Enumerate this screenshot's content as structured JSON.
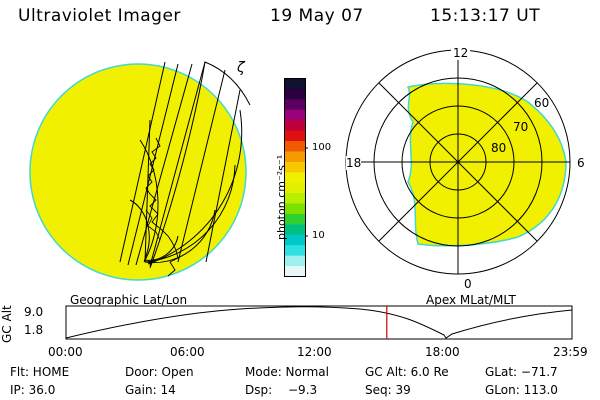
{
  "header": {
    "instrument": "Ultraviolet Imager",
    "date": "19 May 07",
    "time": "15:13:17 UT"
  },
  "left_panel": {
    "label": "Geographic Lat/Lon",
    "marker_glyph": "ζ"
  },
  "colorbar": {
    "label": "photon cm⁻²s⁻¹",
    "ticks": [
      "100",
      "10"
    ],
    "colors": [
      "#101030",
      "#2a0040",
      "#5a0060",
      "#9b007b",
      "#c0003a",
      "#e01010",
      "#f05a00",
      "#f59a00",
      "#f5c800",
      "#f0ef00",
      "#e0f000",
      "#b8ee00",
      "#7ee000",
      "#30d030",
      "#00c080",
      "#00c8c8",
      "#30e0e0",
      "#a0f0f0",
      "#e8f8f8"
    ]
  },
  "right_panel": {
    "label": "Apex MLat/MLT",
    "mlt_labels": {
      "top": "12",
      "right": "6",
      "bottom": "0",
      "left": "18"
    },
    "lat_labels": [
      "60",
      "70",
      "80"
    ]
  },
  "altitude_plot": {
    "ylabel": "GC Alt",
    "ymax": "9.0",
    "ymin": "1.8",
    "xticks": [
      "00:00",
      "06:00",
      "12:00",
      "18:00",
      "23:59"
    ],
    "marker_time_fraction": 0.634
  },
  "status": {
    "flt": "Flt: HOME",
    "door": "Door: Open",
    "mode": "Mode: Normal",
    "gcalt": "GC Alt: 6.0 Re",
    "glat": "GLat: −71.7",
    "ip": "IP: 36.0",
    "gain": "Gain: 14",
    "dsp_label": "Dsp:",
    "dsp_value": "−9.3",
    "seq": "Seq: 39",
    "glon": "GLon: 113.0"
  },
  "colors": {
    "image_fill": "#f0f000",
    "image_edge": "#40d8d0",
    "marker_line": "#d00000"
  }
}
